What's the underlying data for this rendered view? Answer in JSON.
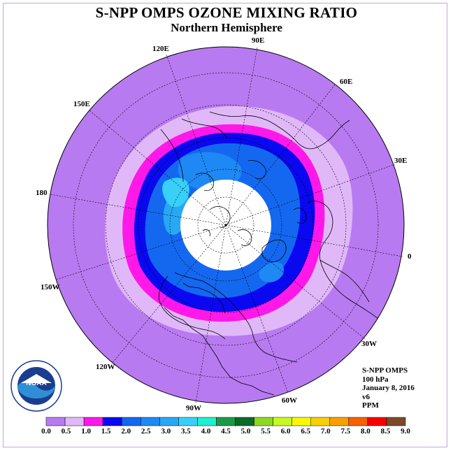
{
  "title": "S-NPP OMPS OZONE MIXING RATIO",
  "subtitle": "Northern Hemisphere",
  "longitude_labels": [
    "90E",
    "60E",
    "30E",
    "0",
    "30W",
    "60W",
    "90W",
    "120W",
    "150W",
    "180",
    "150E",
    "120E"
  ],
  "info": {
    "instrument": "S-NPP OMPS",
    "level": "100 hPa",
    "date": "January 8, 2016",
    "version": "v6",
    "units": "PPM"
  },
  "colorbar": {
    "ticks": [
      "0.0",
      "0.5",
      "1.0",
      "1.5",
      "2.0",
      "2.5",
      "3.0",
      "3.5",
      "4.0",
      "4.5",
      "5.0",
      "5.5",
      "6.0",
      "6.5",
      "7.0",
      "7.5",
      "8.0",
      "8.5",
      "9.0"
    ],
    "colors": [
      "#b87af0",
      "#e0b8f8",
      "#ff18e8",
      "#0a08f0",
      "#1468f0",
      "#1e88f4",
      "#28a8f4",
      "#38d0f8",
      "#20f0d0",
      "#1a9a48",
      "#0a6a28",
      "#90d820",
      "#c8f820",
      "#f8f800",
      "#f8d000",
      "#f8a000",
      "#f86000",
      "#f80000",
      "#7a4a2a"
    ]
  },
  "logo": {
    "text": "NOAA"
  }
}
